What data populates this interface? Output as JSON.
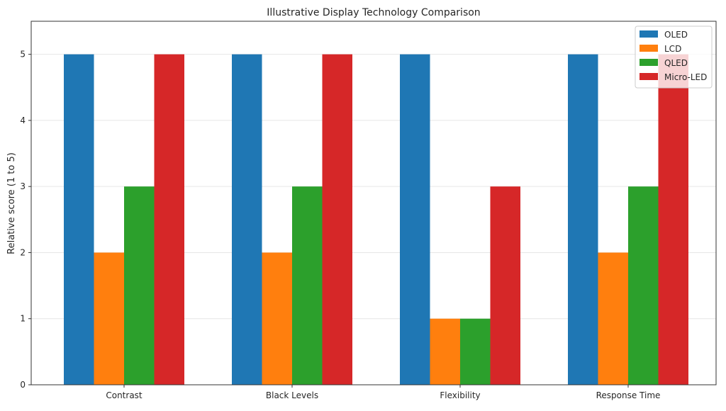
{
  "chart_data": {
    "type": "bar",
    "title": "Illustrative Display Technology Comparison",
    "xlabel": "",
    "ylabel": "Relative score (1 to 5)",
    "categories": [
      "Contrast",
      "Black Levels",
      "Flexibility",
      "Response Time"
    ],
    "series": [
      {
        "name": "OLED",
        "color": "#1f77b4",
        "values": [
          5,
          5,
          5,
          5
        ]
      },
      {
        "name": "LCD",
        "color": "#ff7f0e",
        "values": [
          2,
          2,
          1,
          2
        ]
      },
      {
        "name": "QLED",
        "color": "#2ca02c",
        "values": [
          3,
          3,
          1,
          3
        ]
      },
      {
        "name": "Micro-LED",
        "color": "#d62728",
        "values": [
          5,
          5,
          3,
          5
        ]
      }
    ],
    "ylim": [
      0,
      5.5
    ],
    "yticks": [
      "0",
      "1",
      "2",
      "3",
      "4",
      "5"
    ],
    "grid": true,
    "legend": "top-right"
  }
}
